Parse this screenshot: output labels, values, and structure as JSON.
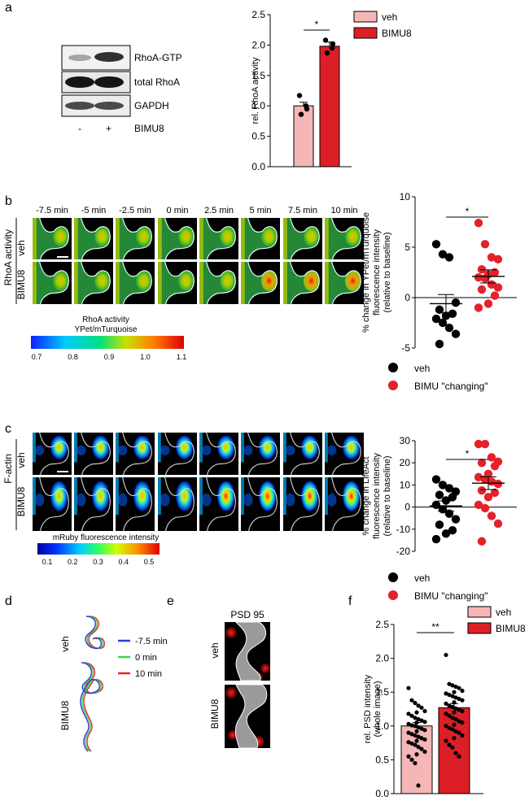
{
  "panel_labels": {
    "a": "a",
    "b": "b",
    "c": "c",
    "d": "d",
    "e": "e",
    "f": "f"
  },
  "colors": {
    "veh_bar": "#f4b6b6",
    "bimu_bar": "#dc1f26",
    "bimu_dot": "#e5212b",
    "line_blue": "#2b3cd8",
    "line_green": "#3bd14a",
    "line_red": "#e0262b"
  },
  "panel_a": {
    "blot_labels": [
      "RhoA-GTP",
      "total RhoA",
      "GAPDH"
    ],
    "lane_minus": "-",
    "lane_plus": "+",
    "lane_treatment": "BIMU8"
  },
  "panel_b": {
    "timepoints": [
      "-7.5 min",
      "-5 min",
      "-2.5 min",
      "0 min",
      "2.5 min",
      "5 min",
      "7.5 min",
      "10 min"
    ],
    "group_label": "RhoA activity",
    "row_veh": "veh",
    "row_bimu": "BIMU8",
    "colorbar_title1": "RhoA activity",
    "colorbar_title2": "YPet/mTurquoise",
    "colorbar_ticks": [
      "0.7",
      "0.8",
      "0.9",
      "1.0",
      "1.1"
    ]
  },
  "panel_c": {
    "group_label": "F-actin",
    "row_veh": "veh",
    "row_bimu": "BIMU8",
    "colorbar_title": "mRuby fluorescence intensity",
    "colorbar_ticks": [
      "0.1",
      "0.2",
      "0.3",
      "0.4",
      "0.5"
    ]
  },
  "panel_d": {
    "row_veh": "veh",
    "row_bimu": "BIMU8",
    "legend": [
      "-7.5 min",
      "0 min",
      "10 min"
    ]
  },
  "panel_e": {
    "title": "PSD 95",
    "row_veh": "veh",
    "row_bimu": "BIMU8"
  },
  "chart_data": [
    {
      "id": "a",
      "type": "bar",
      "categories": [
        "veh",
        "BIMU8"
      ],
      "values": [
        1.0,
        1.98
      ],
      "sem": [
        0.06,
        0.07
      ],
      "points": [
        [
          1.17,
          0.95,
          0.86,
          1.0
        ],
        [
          2.08,
          2.02,
          1.87,
          1.95
        ]
      ],
      "ylabel": "rel. RhoA activity",
      "ylim": [
        0,
        2.5
      ],
      "yticks": [
        "0.0",
        "0.5",
        "1.0",
        "1.5",
        "2.0",
        "2.5"
      ],
      "legend": [
        "veh",
        "BIMU8"
      ],
      "significance": "*"
    },
    {
      "id": "b",
      "type": "scatter",
      "series": [
        {
          "name": "veh",
          "mean": -0.6,
          "sem": 0.9,
          "values": [
            5.3,
            4.3,
            4.0,
            -0.5,
            -1.2,
            -1.6,
            -1.8,
            -2.1,
            -2.5,
            -3.0,
            -3.6,
            -4.6
          ]
        },
        {
          "name": "BIMU \"changing\"",
          "mean": 2.1,
          "sem": 0.65,
          "values": [
            7.4,
            5.3,
            4.0,
            3.8,
            2.8,
            2.5,
            2.3,
            2.0,
            1.9,
            1.3,
            1.0,
            0.8,
            0.2,
            -0.6,
            -1.0
          ]
        }
      ],
      "ylabel": "% change in YPet/mTurquoise fluorescence intensity (relative to baseline)",
      "ylabel_lines": [
        "% change in YPet/mTurquoise",
        "fluorescence intensity",
        "(relative to baseline)"
      ],
      "ylim": [
        -5,
        10
      ],
      "yticks": [
        "-5",
        "0",
        "5",
        "10"
      ],
      "significance": "*"
    },
    {
      "id": "c",
      "type": "scatter",
      "series": [
        {
          "name": "veh",
          "mean": 0.5,
          "sem": 2.3,
          "values": [
            12.5,
            10.0,
            8.5,
            7.0,
            5.5,
            4.5,
            3.0,
            1.0,
            -1.0,
            -3.0,
            -5.5,
            -8.0,
            -10.5,
            -12.0,
            -14.5
          ]
        },
        {
          "name": "BIMU \"changing\"",
          "mean": 10.8,
          "sem": 2.9,
          "values": [
            28.5,
            28.5,
            22.5,
            20.5,
            20.0,
            18.5,
            15.0,
            13.5,
            12.5,
            11.5,
            10.5,
            7.5,
            6.5,
            4.5,
            1.0,
            -0.5,
            -4.0,
            -7.5,
            -15.5
          ]
        }
      ],
      "ylabel": "% change in LifeAct fluorescence intensity (relative to baseline)",
      "ylabel_lines": [
        "% change in LifeAct",
        "fluorescence intensity",
        "(relative to baseline)"
      ],
      "ylim": [
        -20,
        30
      ],
      "yticks": [
        "-20",
        "-10",
        "0",
        "10",
        "20",
        "30"
      ],
      "significance": "*"
    },
    {
      "id": "f",
      "type": "bar",
      "categories": [
        "veh",
        "BIMU8"
      ],
      "values": [
        1.0,
        1.27
      ],
      "sem": [
        0.05,
        0.06
      ],
      "points": [
        [
          1.56,
          1.38,
          1.34,
          1.3,
          1.27,
          1.22,
          1.2,
          1.18,
          1.15,
          1.12,
          1.1,
          1.08,
          1.06,
          1.05,
          1.03,
          1.01,
          1.0,
          0.98,
          0.96,
          0.94,
          0.92,
          0.9,
          0.88,
          0.86,
          0.84,
          0.82,
          0.8,
          0.78,
          0.76,
          0.74,
          0.72,
          0.69,
          0.66,
          0.62,
          0.58,
          0.55,
          0.5,
          0.45,
          0.12
        ],
        [
          2.05,
          1.62,
          1.6,
          1.58,
          1.56,
          1.52,
          1.5,
          1.48,
          1.46,
          1.44,
          1.42,
          1.4,
          1.38,
          1.35,
          1.33,
          1.3,
          1.28,
          1.26,
          1.24,
          1.22,
          1.2,
          1.18,
          1.15,
          1.12,
          1.1,
          1.07,
          1.05,
          1.02,
          1.0,
          0.97,
          0.95,
          0.92,
          0.9,
          0.86,
          0.82,
          0.78,
          0.72,
          0.68,
          0.6,
          0.55
        ]
      ],
      "ylabel": "rel. PSD intensity (whole image)",
      "ylabel_lines": [
        "rel. PSD intensity",
        "(whole image)"
      ],
      "ylim": [
        0,
        2.5
      ],
      "yticks": [
        "0.0",
        "0.5",
        "1.0",
        "1.5",
        "2.0",
        "2.5"
      ],
      "legend": [
        "veh",
        "BIMU8"
      ],
      "significance": "**"
    }
  ]
}
